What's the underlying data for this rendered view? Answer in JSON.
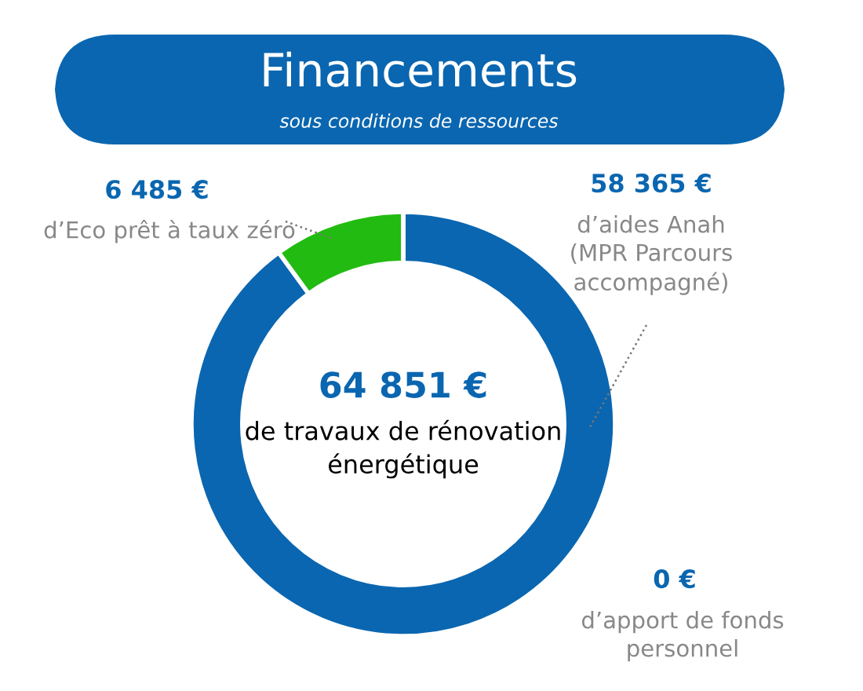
{
  "chart_data": {
    "type": "donut",
    "title": "Financements",
    "subtitle": "sous conditions de ressources",
    "categories": [
      "d’aides Anah\n(MPR Parcours\naccompagné)",
      "d’Eco prêt à taux zéro",
      "d’apport de fonds\npersonnel"
    ],
    "values": [
      58365,
      6485,
      0
    ],
    "value_labels": [
      "58 365 €",
      "6 485 €",
      "0 €"
    ],
    "colors": [
      "#0a66b0",
      "#22bb11",
      "#0a66b0"
    ],
    "annotations": [
      "64 851 €",
      "de travaux de rénovation\nénergétique"
    ],
    "legend": false
  }
}
